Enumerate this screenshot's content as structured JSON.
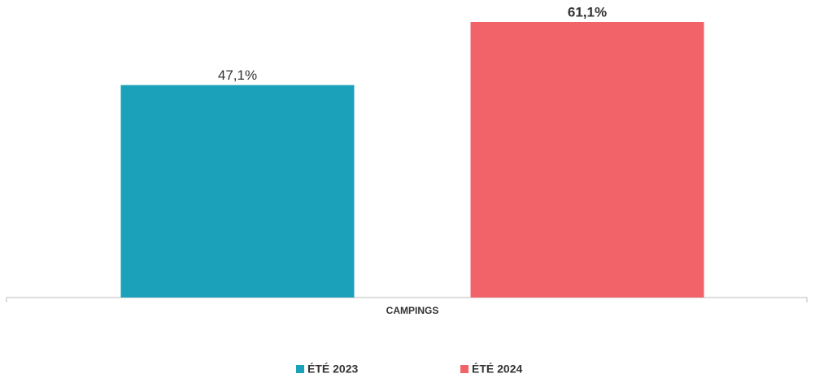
{
  "chart_data": {
    "type": "bar",
    "categories": [
      "CAMPINGS"
    ],
    "series": [
      {
        "name": "ÉTÉ 2023",
        "color": "#1ba1b9",
        "values": [
          47.1
        ],
        "value_labels": [
          "47,1%"
        ]
      },
      {
        "name": "ÉTÉ 2024",
        "color": "#f26369",
        "values": [
          61.1
        ],
        "value_labels": [
          "61,1%"
        ]
      }
    ]
  }
}
